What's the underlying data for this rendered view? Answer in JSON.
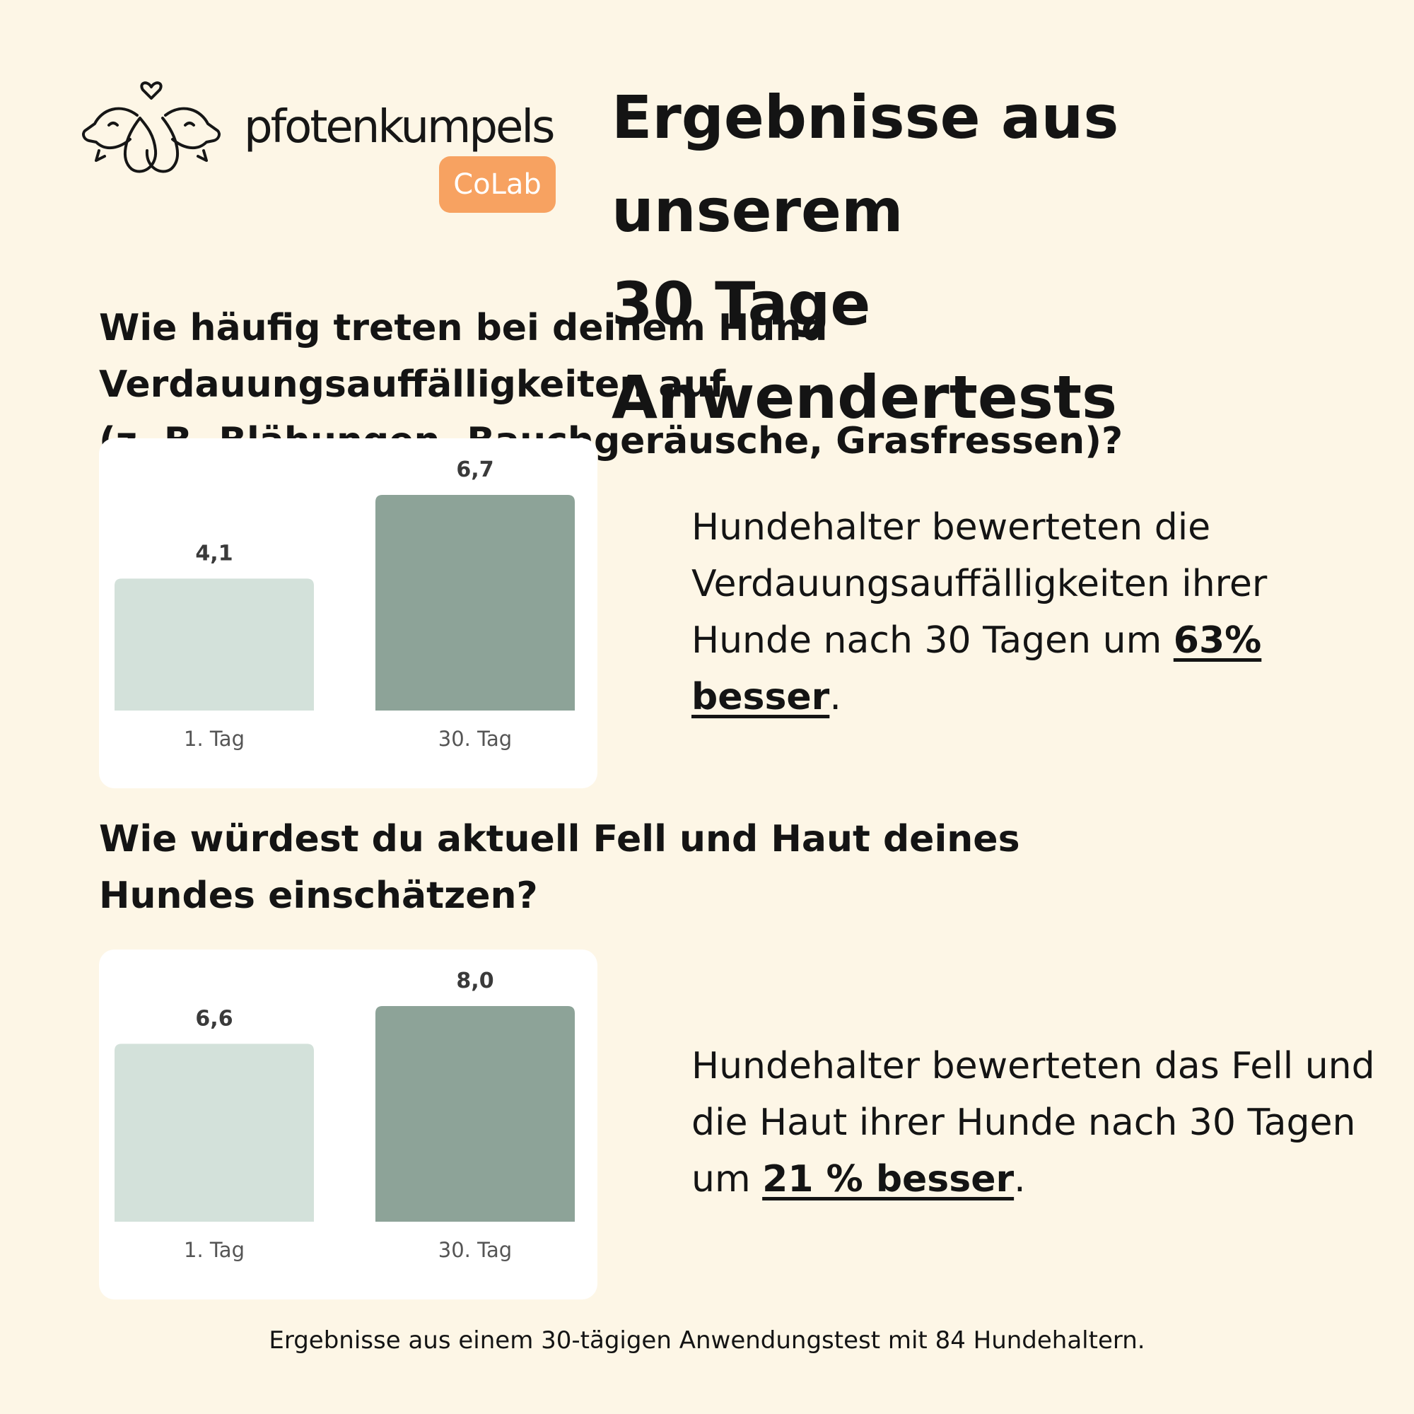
{
  "brand": {
    "name": "pfotenkumpels",
    "badge": "CoLab",
    "logo_icon": "two-dogs-heart-icon"
  },
  "title": "Ergebnisse aus unserem\n30 Tage Anwendertests",
  "sections": [
    {
      "question": "Wie häufig treten bei deinem Hund Verdauungsauffälligkeiten auf\n(z. B. Blähungen, Bauchgeräusche, Grasfressen)?",
      "result_text": "Hundehalter bewerteten die Verdauungsauffälligkeiten ihrer Hunde  nach 30 Tagen um ",
      "result_highlight": "63% besser",
      "result_end": "."
    },
    {
      "question": "Wie würdest du aktuell Fell und Haut deines\nHundes einschätzen?",
      "result_text": "Hundehalter bewerteten das Fell und die Haut ihrer Hunde nach 30 Tagen um ",
      "result_highlight": "21 % besser",
      "result_end": "."
    }
  ],
  "chart_data": [
    {
      "type": "bar",
      "categories": [
        "1. Tag",
        "30. Tag"
      ],
      "values": [
        4.1,
        6.7
      ],
      "value_labels": [
        "4,1",
        "6,7"
      ],
      "colors": [
        "#d3e1da",
        "#8da398"
      ],
      "title": "",
      "xlabel": "",
      "ylabel": "",
      "ylim": [
        0,
        6.7
      ],
      "grid": false
    },
    {
      "type": "bar",
      "categories": [
        "1. Tag",
        "30. Tag"
      ],
      "values": [
        6.6,
        8.0
      ],
      "value_labels": [
        "6,6",
        "8,0"
      ],
      "colors": [
        "#d3e1da",
        "#8da398"
      ],
      "title": "",
      "xlabel": "",
      "ylabel": "",
      "ylim": [
        0,
        8.0
      ],
      "grid": false
    }
  ],
  "footnote": "Ergebnisse aus einem 30-tägigen Anwendungstest mit 84 Hundehaltern."
}
